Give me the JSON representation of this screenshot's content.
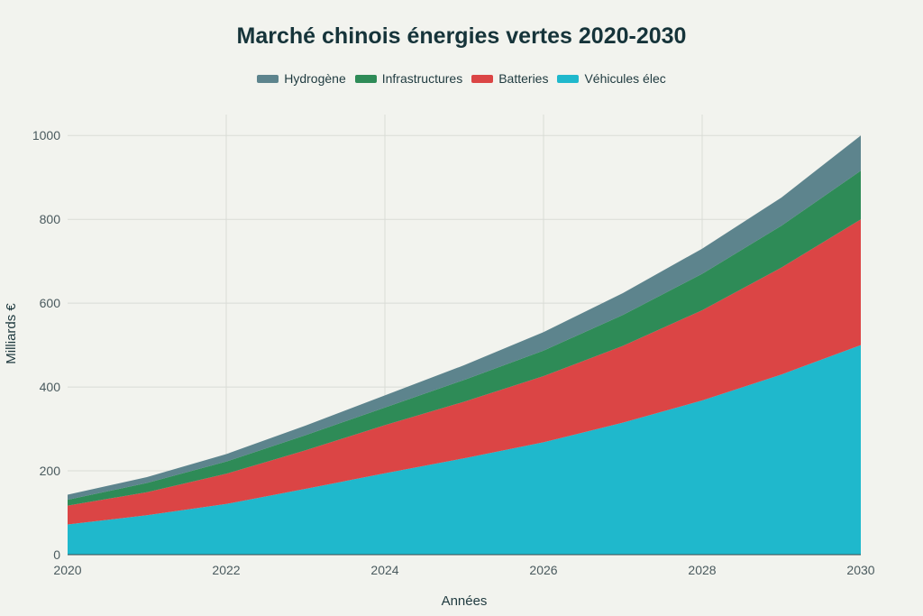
{
  "chart_data": {
    "type": "area",
    "stacked": true,
    "title": "Marché chinois énergies vertes 2020-2030",
    "xlabel": "Années",
    "ylabel": "Milliards €",
    "x": [
      2020,
      2021,
      2022,
      2023,
      2024,
      2025,
      2026,
      2027,
      2028,
      2029,
      2030
    ],
    "xlim": [
      2020,
      2030
    ],
    "ylim": [
      0,
      1050
    ],
    "x_ticks": [
      2020,
      2022,
      2024,
      2026,
      2028,
      2030
    ],
    "y_ticks": [
      0,
      200,
      400,
      600,
      800,
      1000
    ],
    "grid": true,
    "legend_position": "top-center",
    "series": [
      {
        "name": "Véhicules élec",
        "color": "#1fb8cc",
        "values": [
          72,
          94,
          121,
          157,
          194,
          230,
          268,
          315,
          368,
          430,
          500
        ]
      },
      {
        "name": "Batteries",
        "color": "#db4545",
        "values": [
          45,
          55,
          72,
          92,
          115,
          135,
          158,
          183,
          215,
          255,
          300
        ]
      },
      {
        "name": "Infrastructures",
        "color": "#2e8b57",
        "values": [
          14,
          22,
          29,
          36,
          42,
          52,
          61,
          74,
          87,
          100,
          116
        ]
      },
      {
        "name": "Hydrogène",
        "color": "#5d848d",
        "values": [
          12,
          14,
          18,
          23,
          29,
          35,
          44,
          52,
          60,
          67,
          84
        ]
      }
    ],
    "legend_order": [
      "Hydrogène",
      "Infrastructures",
      "Batteries",
      "Véhicules élec"
    ]
  }
}
